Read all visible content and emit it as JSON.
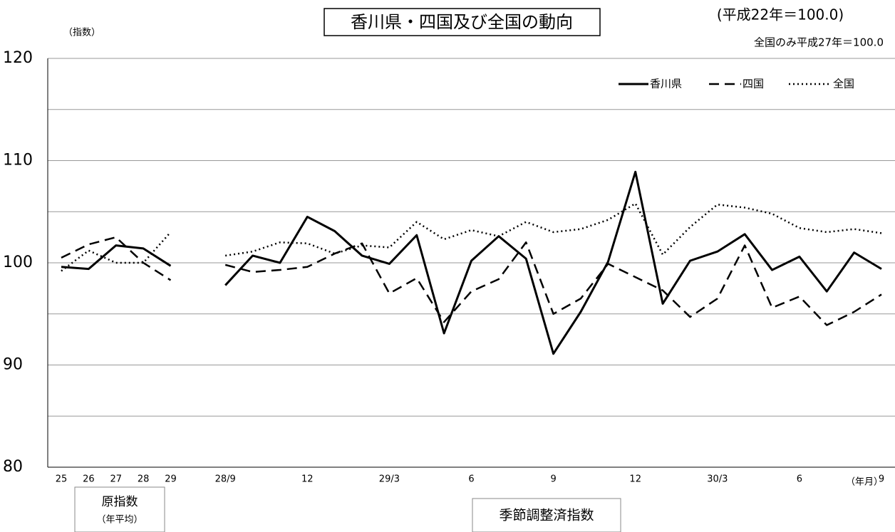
{
  "chart_data": {
    "type": "line",
    "title": "香川県・四国及び全国の動向",
    "subtitle": "(平成22年＝100.0)",
    "note": "全国のみ平成27年＝100.0",
    "y_label": "（指数）",
    "x_label": "（年月）",
    "group_labels": {
      "annual": "原指数",
      "annual_sub": "（年平均）",
      "seasonal": "季節調整済指数"
    },
    "categories": [
      "25",
      "26",
      "27",
      "28",
      "29",
      null,
      "28/9",
      null,
      null,
      "12",
      null,
      null,
      "29/3",
      null,
      null,
      "6",
      null,
      null,
      "9",
      null,
      null,
      "12",
      null,
      null,
      "30/3",
      null,
      null,
      "6",
      null,
      null,
      "9"
    ],
    "series": [
      {
        "name": "香川県",
        "color": "#000000",
        "dash": "solid",
        "values": [
          99.6,
          99.4,
          101.7,
          101.4,
          99.7,
          null,
          97.8,
          100.7,
          100.0,
          104.5,
          103.1,
          100.7,
          99.9,
          102.7,
          93.1,
          100.2,
          102.6,
          100.4,
          91.1,
          95.2,
          100.1,
          108.9,
          96.0,
          100.2,
          101.1,
          102.8,
          99.3,
          100.6,
          97.2,
          101.0,
          99.4
        ]
      },
      {
        "name": "四国",
        "color": "#000000",
        "dash": "dashed",
        "values": [
          100.5,
          101.8,
          102.5,
          100.0,
          98.3,
          null,
          99.8,
          99.1,
          99.3,
          99.6,
          100.9,
          101.9,
          97.0,
          98.5,
          94.2,
          97.2,
          98.4,
          102.0,
          95.0,
          96.5,
          99.9,
          98.6,
          97.3,
          94.7,
          96.5,
          101.7,
          95.6,
          96.7,
          93.9,
          95.2,
          96.9
        ]
      },
      {
        "name": "全国",
        "color": "#000000",
        "dash": "dotted",
        "values": [
          99.2,
          101.2,
          100.0,
          100.0,
          103.0,
          null,
          100.7,
          101.1,
          102.0,
          101.9,
          100.9,
          101.7,
          101.5,
          104.0,
          102.3,
          103.2,
          102.6,
          104.0,
          103.0,
          103.3,
          104.2,
          105.8,
          100.8,
          103.5,
          105.7,
          105.4,
          104.8,
          103.4,
          103.0,
          103.3,
          102.9
        ]
      }
    ],
    "ylim": [
      80,
      120
    ],
    "yticks": [
      80,
      90,
      100,
      110,
      120
    ],
    "minor_gridlines": [
      85,
      95,
      105,
      115
    ],
    "grid": true,
    "legend": "top-right"
  }
}
